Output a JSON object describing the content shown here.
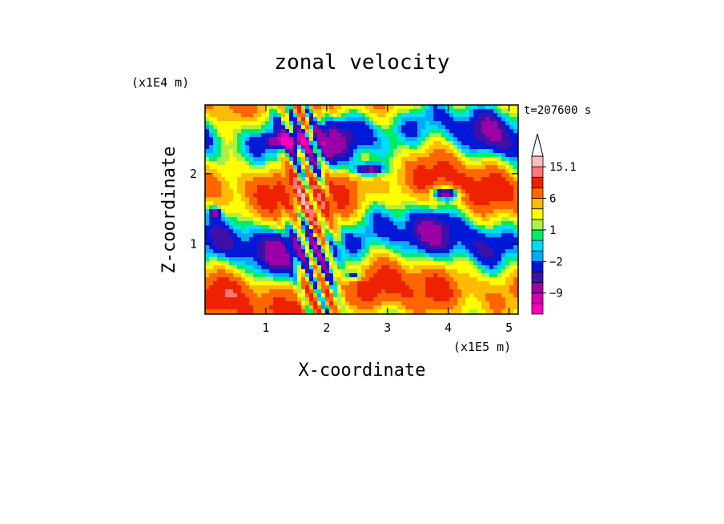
{
  "chart_data": {
    "type": "heatmap",
    "title": "zonal velocity",
    "xlabel": "X-coordinate",
    "ylabel": "Z-coordinate",
    "x_unit": "(x1E5 m)",
    "y_unit": "(x1E4 m)",
    "time_label": "t=207600 s",
    "xlim": [
      0,
      5.15
    ],
    "ylim": [
      0,
      2.98
    ],
    "x_ticks": [
      {
        "value": 1,
        "label": "1"
      },
      {
        "value": 2,
        "label": "2"
      },
      {
        "value": 3,
        "label": "3"
      },
      {
        "value": 4,
        "label": "4"
      },
      {
        "value": 5,
        "label": "5"
      }
    ],
    "y_ticks": [
      {
        "value": 1,
        "label": "1"
      },
      {
        "value": 2,
        "label": "2"
      }
    ],
    "colorbar": {
      "levels": [
        -15,
        -12,
        -9,
        -6,
        -4,
        -2,
        -1,
        0,
        1,
        2,
        4,
        6,
        9,
        12,
        15.1
      ],
      "colors": [
        "#ff00bb",
        "#d400b0",
        "#9a00a6",
        "#3d10a8",
        "#0018d8",
        "#00aaff",
        "#00ddff",
        "#00ee66",
        "#aaf046",
        "#ffff00",
        "#ffbb00",
        "#ff6600",
        "#ee2200",
        "#ff7777",
        "#ffbbbb"
      ],
      "labels": [
        {
          "value": 15.1,
          "label": "15.1"
        },
        {
          "value": 6,
          "label": "6"
        },
        {
          "value": 1,
          "label": "1"
        },
        {
          "value": -2,
          "label": "−2"
        },
        {
          "value": -9,
          "label": "−9"
        }
      ]
    }
  }
}
